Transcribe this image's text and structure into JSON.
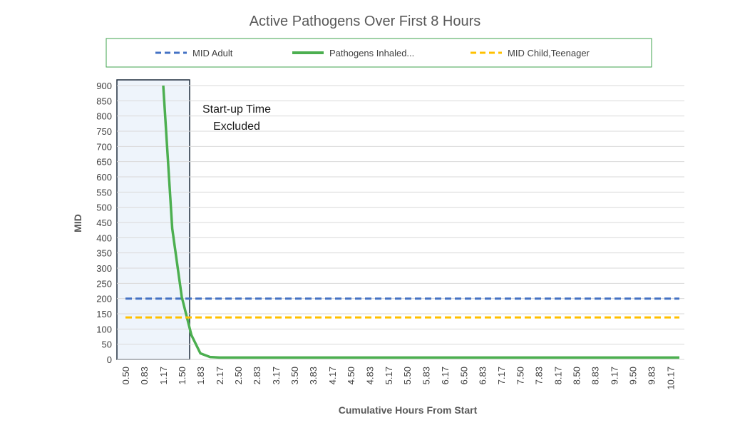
{
  "chart_data": {
    "type": "line",
    "title": "Active Pathogens Over First 8 Hours",
    "xlabel": "Cumulative Hours From Start",
    "ylabel": "MID",
    "ylim": [
      0,
      900
    ],
    "yticks": [
      0,
      50,
      100,
      150,
      200,
      250,
      300,
      350,
      400,
      450,
      500,
      550,
      600,
      650,
      700,
      750,
      800,
      850,
      900
    ],
    "grid": true,
    "legend_position": "top",
    "categories": [
      "0.50",
      "0.83",
      "1.17",
      "1.50",
      "1.83",
      "2.17",
      "2.50",
      "2.83",
      "3.17",
      "3.50",
      "3.83",
      "4.17",
      "4.50",
      "4.83",
      "5.17",
      "5.50",
      "5.83",
      "6.17",
      "6.50",
      "6.83",
      "7.17",
      "7.50",
      "7.83",
      "8.17",
      "8.50",
      "8.83",
      "9.17",
      "9.50",
      "9.83",
      "10.17"
    ],
    "x": [
      0.5,
      0.67,
      0.83,
      1.0,
      1.17,
      1.33,
      1.5,
      1.67,
      1.83,
      2.0,
      2.17,
      2.33,
      2.5,
      2.67,
      2.83,
      3.0,
      3.17,
      3.33,
      3.5,
      3.67,
      3.83,
      4.0,
      4.17,
      4.33,
      4.5,
      4.67,
      4.83,
      5.0,
      5.17,
      5.33,
      5.5,
      5.67,
      5.83,
      6.0,
      6.17,
      6.33,
      6.5,
      6.67,
      6.83,
      7.0,
      7.17,
      7.33,
      7.5,
      7.67,
      7.83,
      8.0,
      8.17,
      8.33,
      8.5,
      8.67,
      8.83,
      9.0,
      9.17,
      9.33,
      9.5,
      9.67,
      9.83,
      10.0,
      10.17,
      10.33
    ],
    "series": [
      {
        "name": "MID Adult",
        "style": "dashed",
        "color": "#4472c4",
        "values": [
          200,
          200,
          200,
          200,
          200,
          200,
          200,
          200,
          200,
          200,
          200,
          200,
          200,
          200,
          200,
          200,
          200,
          200,
          200,
          200,
          200,
          200,
          200,
          200,
          200,
          200,
          200,
          200,
          200,
          200,
          200,
          200,
          200,
          200,
          200,
          200,
          200,
          200,
          200,
          200,
          200,
          200,
          200,
          200,
          200,
          200,
          200,
          200,
          200,
          200,
          200,
          200,
          200,
          200,
          200,
          200,
          200,
          200,
          200,
          200
        ]
      },
      {
        "name": "Pathogens Inhaled...",
        "style": "solid",
        "color": "#4caf50",
        "values": [
          null,
          null,
          null,
          null,
          900,
          430,
          205,
          80,
          20,
          8,
          6,
          6,
          6,
          6,
          6,
          6,
          6,
          6,
          6,
          6,
          6,
          6,
          6,
          6,
          6,
          6,
          6,
          6,
          6,
          6,
          6,
          6,
          6,
          6,
          6,
          6,
          6,
          6,
          6,
          6,
          6,
          6,
          6,
          6,
          6,
          6,
          6,
          6,
          6,
          6,
          6,
          6,
          6,
          6,
          6,
          6,
          6,
          6,
          6,
          6
        ]
      },
      {
        "name": "MID Child,Teenager",
        "style": "dashed",
        "color": "#ffc000",
        "values": [
          138,
          138,
          138,
          138,
          138,
          138,
          138,
          138,
          138,
          138,
          138,
          138,
          138,
          138,
          138,
          138,
          138,
          138,
          138,
          138,
          138,
          138,
          138,
          138,
          138,
          138,
          138,
          138,
          138,
          138,
          138,
          138,
          138,
          138,
          138,
          138,
          138,
          138,
          138,
          138,
          138,
          138,
          138,
          138,
          138,
          138,
          138,
          138,
          138,
          138,
          138,
          138,
          138,
          138,
          138,
          138,
          138,
          138,
          138,
          138
        ]
      }
    ],
    "annotation": {
      "lines": [
        "Start-up Time",
        "Excluded"
      ],
      "x_range": [
        0.5,
        1.5
      ]
    }
  },
  "colors": {
    "legend_border": "#3fa34d",
    "annotation_border": "#1f2d3d",
    "annotation_fill": "#eef4fb",
    "grid": "#d9d9d9",
    "text": "#404040"
  }
}
